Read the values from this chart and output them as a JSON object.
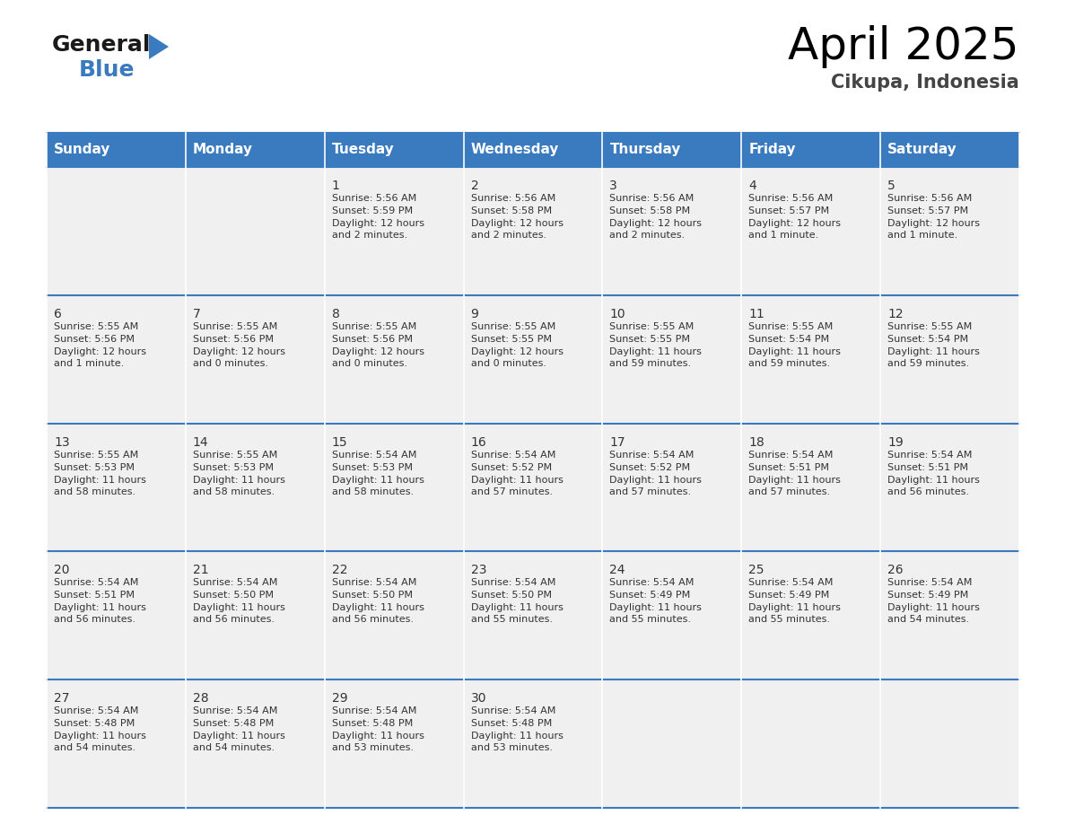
{
  "title": "April 2025",
  "subtitle": "Cikupa, Indonesia",
  "header_color": "#3a7bbf",
  "header_text_color": "#ffffff",
  "cell_bg_color": "#f0f0f0",
  "text_color": "#333333",
  "grid_line_color": "#3a7bbf",
  "day_headers": [
    "Sunday",
    "Monday",
    "Tuesday",
    "Wednesday",
    "Thursday",
    "Friday",
    "Saturday"
  ],
  "days": [
    {
      "day": 1,
      "col": 2,
      "row": 0,
      "sunrise": "5:56 AM",
      "sunset": "5:59 PM",
      "daylight": "12 hours",
      "daylight2": "and 2 minutes."
    },
    {
      "day": 2,
      "col": 3,
      "row": 0,
      "sunrise": "5:56 AM",
      "sunset": "5:58 PM",
      "daylight": "12 hours",
      "daylight2": "and 2 minutes."
    },
    {
      "day": 3,
      "col": 4,
      "row": 0,
      "sunrise": "5:56 AM",
      "sunset": "5:58 PM",
      "daylight": "12 hours",
      "daylight2": "and 2 minutes."
    },
    {
      "day": 4,
      "col": 5,
      "row": 0,
      "sunrise": "5:56 AM",
      "sunset": "5:57 PM",
      "daylight": "12 hours",
      "daylight2": "and 1 minute."
    },
    {
      "day": 5,
      "col": 6,
      "row": 0,
      "sunrise": "5:56 AM",
      "sunset": "5:57 PM",
      "daylight": "12 hours",
      "daylight2": "and 1 minute."
    },
    {
      "day": 6,
      "col": 0,
      "row": 1,
      "sunrise": "5:55 AM",
      "sunset": "5:56 PM",
      "daylight": "12 hours",
      "daylight2": "and 1 minute."
    },
    {
      "day": 7,
      "col": 1,
      "row": 1,
      "sunrise": "5:55 AM",
      "sunset": "5:56 PM",
      "daylight": "12 hours",
      "daylight2": "and 0 minutes."
    },
    {
      "day": 8,
      "col": 2,
      "row": 1,
      "sunrise": "5:55 AM",
      "sunset": "5:56 PM",
      "daylight": "12 hours",
      "daylight2": "and 0 minutes."
    },
    {
      "day": 9,
      "col": 3,
      "row": 1,
      "sunrise": "5:55 AM",
      "sunset": "5:55 PM",
      "daylight": "12 hours",
      "daylight2": "and 0 minutes."
    },
    {
      "day": 10,
      "col": 4,
      "row": 1,
      "sunrise": "5:55 AM",
      "sunset": "5:55 PM",
      "daylight": "11 hours",
      "daylight2": "and 59 minutes."
    },
    {
      "day": 11,
      "col": 5,
      "row": 1,
      "sunrise": "5:55 AM",
      "sunset": "5:54 PM",
      "daylight": "11 hours",
      "daylight2": "and 59 minutes."
    },
    {
      "day": 12,
      "col": 6,
      "row": 1,
      "sunrise": "5:55 AM",
      "sunset": "5:54 PM",
      "daylight": "11 hours",
      "daylight2": "and 59 minutes."
    },
    {
      "day": 13,
      "col": 0,
      "row": 2,
      "sunrise": "5:55 AM",
      "sunset": "5:53 PM",
      "daylight": "11 hours",
      "daylight2": "and 58 minutes."
    },
    {
      "day": 14,
      "col": 1,
      "row": 2,
      "sunrise": "5:55 AM",
      "sunset": "5:53 PM",
      "daylight": "11 hours",
      "daylight2": "and 58 minutes."
    },
    {
      "day": 15,
      "col": 2,
      "row": 2,
      "sunrise": "5:54 AM",
      "sunset": "5:53 PM",
      "daylight": "11 hours",
      "daylight2": "and 58 minutes."
    },
    {
      "day": 16,
      "col": 3,
      "row": 2,
      "sunrise": "5:54 AM",
      "sunset": "5:52 PM",
      "daylight": "11 hours",
      "daylight2": "and 57 minutes."
    },
    {
      "day": 17,
      "col": 4,
      "row": 2,
      "sunrise": "5:54 AM",
      "sunset": "5:52 PM",
      "daylight": "11 hours",
      "daylight2": "and 57 minutes."
    },
    {
      "day": 18,
      "col": 5,
      "row": 2,
      "sunrise": "5:54 AM",
      "sunset": "5:51 PM",
      "daylight": "11 hours",
      "daylight2": "and 57 minutes."
    },
    {
      "day": 19,
      "col": 6,
      "row": 2,
      "sunrise": "5:54 AM",
      "sunset": "5:51 PM",
      "daylight": "11 hours",
      "daylight2": "and 56 minutes."
    },
    {
      "day": 20,
      "col": 0,
      "row": 3,
      "sunrise": "5:54 AM",
      "sunset": "5:51 PM",
      "daylight": "11 hours",
      "daylight2": "and 56 minutes."
    },
    {
      "day": 21,
      "col": 1,
      "row": 3,
      "sunrise": "5:54 AM",
      "sunset": "5:50 PM",
      "daylight": "11 hours",
      "daylight2": "and 56 minutes."
    },
    {
      "day": 22,
      "col": 2,
      "row": 3,
      "sunrise": "5:54 AM",
      "sunset": "5:50 PM",
      "daylight": "11 hours",
      "daylight2": "and 56 minutes."
    },
    {
      "day": 23,
      "col": 3,
      "row": 3,
      "sunrise": "5:54 AM",
      "sunset": "5:50 PM",
      "daylight": "11 hours",
      "daylight2": "and 55 minutes."
    },
    {
      "day": 24,
      "col": 4,
      "row": 3,
      "sunrise": "5:54 AM",
      "sunset": "5:49 PM",
      "daylight": "11 hours",
      "daylight2": "and 55 minutes."
    },
    {
      "day": 25,
      "col": 5,
      "row": 3,
      "sunrise": "5:54 AM",
      "sunset": "5:49 PM",
      "daylight": "11 hours",
      "daylight2": "and 55 minutes."
    },
    {
      "day": 26,
      "col": 6,
      "row": 3,
      "sunrise": "5:54 AM",
      "sunset": "5:49 PM",
      "daylight": "11 hours",
      "daylight2": "and 54 minutes."
    },
    {
      "day": 27,
      "col": 0,
      "row": 4,
      "sunrise": "5:54 AM",
      "sunset": "5:48 PM",
      "daylight": "11 hours",
      "daylight2": "and 54 minutes."
    },
    {
      "day": 28,
      "col": 1,
      "row": 4,
      "sunrise": "5:54 AM",
      "sunset": "5:48 PM",
      "daylight": "11 hours",
      "daylight2": "and 54 minutes."
    },
    {
      "day": 29,
      "col": 2,
      "row": 4,
      "sunrise": "5:54 AM",
      "sunset": "5:48 PM",
      "daylight": "11 hours",
      "daylight2": "and 53 minutes."
    },
    {
      "day": 30,
      "col": 3,
      "row": 4,
      "sunrise": "5:54 AM",
      "sunset": "5:48 PM",
      "daylight": "11 hours",
      "daylight2": "and 53 minutes."
    }
  ],
  "logo_general_color": "#1a1a1a",
  "logo_blue_color": "#3a7bbf",
  "logo_triangle_color": "#3a7bbf",
  "title_fontsize": 36,
  "subtitle_fontsize": 15,
  "header_fontsize": 11,
  "day_num_fontsize": 10,
  "cell_text_fontsize": 8
}
